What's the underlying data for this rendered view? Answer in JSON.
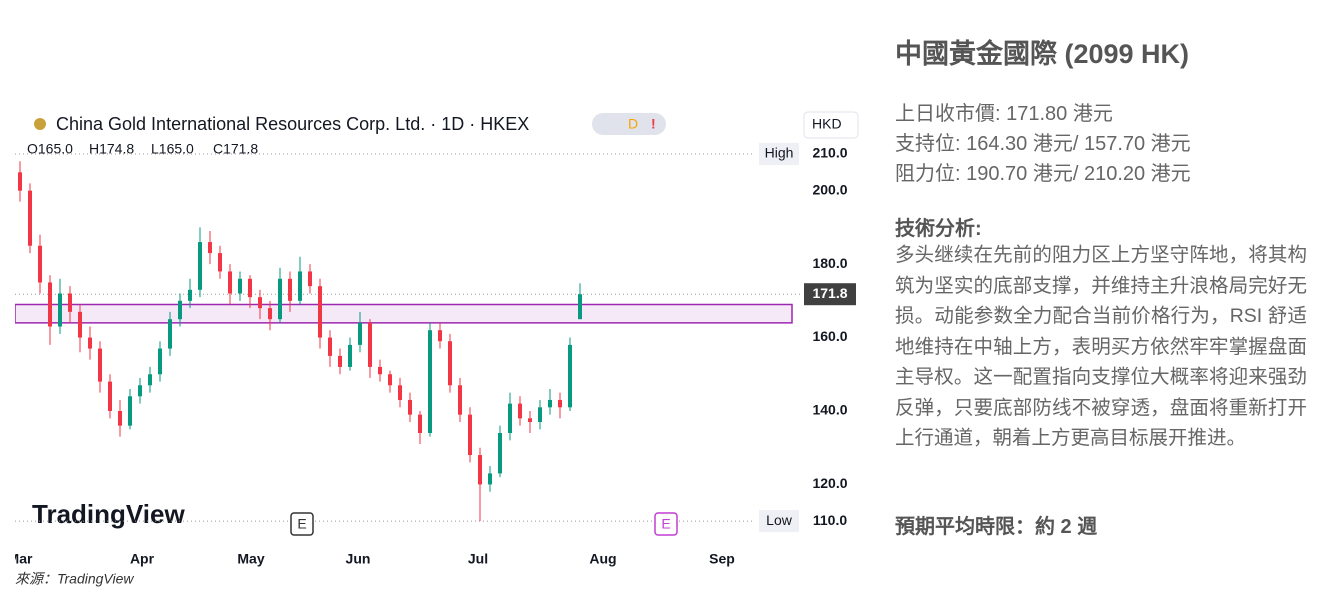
{
  "chart_data": {
    "type": "candlestick",
    "title": "China Gold International Resources Corp. Ltd. · 1D · HKEX",
    "flags": [
      "D",
      "!"
    ],
    "ohlc_labels": [
      "O165.0",
      "H174.8",
      "L165.0",
      "C171.8"
    ],
    "currency": "HKD",
    "watermark": "TradingView",
    "events": [
      "E",
      "E"
    ],
    "x": [
      0,
      2,
      4,
      6,
      8,
      10,
      12,
      14,
      16,
      18,
      20,
      22,
      24,
      26,
      28,
      30,
      32,
      34,
      36,
      38,
      40,
      42,
      44,
      46,
      48,
      50,
      52,
      54,
      56,
      58,
      60,
      62,
      64,
      66,
      68,
      70,
      72,
      74,
      76,
      78,
      80,
      82,
      84,
      86,
      88,
      90,
      92,
      94,
      96,
      98,
      100,
      102,
      104,
      106,
      108,
      110,
      112
    ],
    "open": [
      205,
      200,
      185,
      175,
      163,
      172,
      167,
      160,
      157,
      148,
      140,
      136,
      144,
      147,
      150,
      157,
      165,
      170,
      173,
      186,
      183,
      178,
      172,
      176,
      171,
      168,
      165,
      176,
      170,
      178,
      174,
      160,
      155,
      152,
      158,
      164,
      152,
      150,
      147,
      143,
      139,
      134,
      162,
      159,
      147,
      139,
      128,
      120,
      123,
      134,
      142,
      138,
      137,
      141,
      143,
      141,
      165
    ],
    "high": [
      208,
      202,
      188,
      177,
      176,
      174,
      169,
      163,
      159,
      150,
      143,
      146,
      149,
      152,
      159,
      167,
      172,
      176,
      190,
      189,
      185,
      180,
      178,
      177,
      173,
      170,
      179,
      178,
      182,
      180,
      176,
      162,
      157,
      160,
      167,
      165,
      154,
      151,
      149,
      145,
      140,
      164,
      164,
      161,
      149,
      141,
      130,
      125,
      136,
      145,
      144,
      140,
      143,
      146,
      145,
      160,
      174.8
    ],
    "low": [
      197,
      183,
      172,
      158,
      161,
      164,
      156,
      154,
      145,
      138,
      133,
      135,
      142,
      145,
      148,
      155,
      163,
      168,
      171,
      180,
      176,
      169,
      170,
      168,
      165,
      162,
      164,
      167,
      169,
      172,
      157,
      152,
      150,
      151,
      156,
      149,
      148,
      145,
      141,
      137,
      131,
      133,
      157,
      145,
      137,
      126,
      110,
      118,
      122,
      132,
      136,
      134,
      135,
      139,
      138,
      140,
      165
    ],
    "close": [
      200,
      185,
      175,
      163,
      172,
      167,
      160,
      157,
      148,
      140,
      136,
      144,
      147,
      150,
      157,
      165,
      170,
      173,
      186,
      183,
      178,
      172,
      176,
      171,
      168,
      165,
      176,
      170,
      178,
      174,
      160,
      155,
      152,
      158,
      164,
      152,
      150,
      147,
      143,
      139,
      134,
      162,
      159,
      147,
      139,
      128,
      120,
      123,
      134,
      142,
      138,
      137,
      141,
      143,
      141,
      158,
      171.8
    ],
    "up_color": "#089981",
    "down_color": "#f23645",
    "xlim": [
      -1,
      156
    ],
    "xticks": [
      {
        "value": 0,
        "label": "Mar"
      },
      {
        "value": 24.4,
        "label": "Apr"
      },
      {
        "value": 46.2,
        "label": "May"
      },
      {
        "value": 67.6,
        "label": "Jun"
      },
      {
        "value": 91.6,
        "label": "Jul"
      },
      {
        "value": 116.6,
        "label": "Aug"
      },
      {
        "value": 140.4,
        "label": "Sep"
      }
    ],
    "ylim": [
      103.5,
      213.8
    ],
    "yticks": [
      {
        "value": 120,
        "label": "120.0"
      },
      {
        "value": 140,
        "label": "140.0"
      },
      {
        "value": 160,
        "label": "160.0"
      },
      {
        "value": 180,
        "label": "180.0"
      },
      {
        "value": 200,
        "label": "200.0"
      }
    ],
    "high_marker": {
      "name": "High",
      "value": 210,
      "label": "210.0"
    },
    "low_marker": {
      "name": "Low",
      "value": 110,
      "label": "110.0"
    },
    "last_price": 171.8,
    "zone": [
      164,
      169
    ],
    "zone_color": "#9c27b0"
  },
  "text": {
    "heading": "中國黃金國際 (2099 HK)",
    "lines": [
      "上日收市價: 171.80 港元",
      "支持位: 164.30 港元/ 157.70 港元",
      "阻力位: 190.70 港元/ 210.20 港元"
    ],
    "section": "技術分析:",
    "analysis": "多头继续在先前的阻力区上方坚守阵地，将其构筑为坚实的底部支撑，并维持主升浪格局完好无损。动能参数全力配合当前价格行为，RSI 舒适地维持在中轴上方，表明买方依然牢牢掌握盘面主导权。这一配置指向支撑位大概率将迎来强劲反弹，只要底部防线不被穿透，盘面将重新打开上行通道，朝着上方更高目标展开推进。",
    "horizon": "預期平均時限：約 2 週",
    "source": "來源：TradingView"
  }
}
